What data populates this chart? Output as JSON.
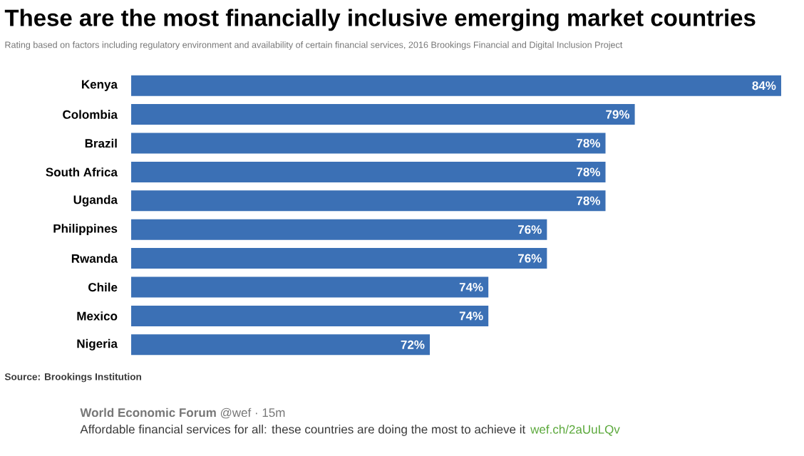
{
  "chart_data": {
    "type": "bar",
    "orientation": "horizontal",
    "title": "These are the most financially inclusive emerging market countries",
    "subtitle": "Rating based on factors including regulatory environment and availability of certain financial services, 2016 Brookings Financial and Digital Inclusion Project",
    "categories": [
      "Kenya",
      "Colombia",
      "Brazil",
      "South Africa",
      "Uganda",
      "Philippines",
      "Rwanda",
      "Chile",
      "Mexico",
      "Nigeria"
    ],
    "values": [
      84,
      79,
      78,
      78,
      78,
      76,
      76,
      74,
      74,
      72
    ],
    "value_labels": [
      "84%",
      "79%",
      "78%",
      "78%",
      "78%",
      "76%",
      "76%",
      "74%",
      "74%",
      "72%"
    ],
    "color": "#3b70b5",
    "xlim": [
      61.8,
      84
    ],
    "tick_labels": "x",
    "annotations": [
      "Source: Brookings Institution",
      "**World Economic Forum** @wef · 15m",
      "Affordable financial services for all: these countries are doing the most to achieve it",
      "wef.ch/2aUuLQv"
    ]
  }
}
